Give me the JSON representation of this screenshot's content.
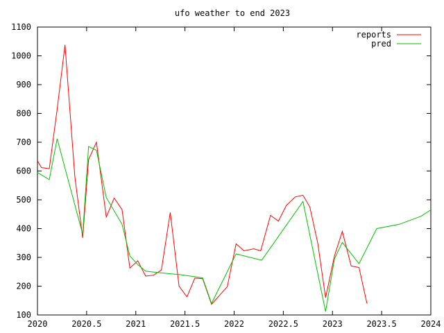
{
  "chart_data": {
    "type": "line",
    "title": "ufo weather to end 2023",
    "xlabel": "",
    "ylabel": "",
    "xlim": [
      2020,
      2024
    ],
    "ylim": [
      100,
      1100
    ],
    "x_ticks": [
      2020,
      2020.5,
      2021,
      2021.5,
      2022,
      2022.5,
      2023,
      2023.5,
      2024
    ],
    "x_tick_labels": [
      "2020",
      "2020.5",
      "2021",
      "2021.5",
      "2022",
      "2022.5",
      "2023",
      "2023.5",
      "2024"
    ],
    "y_ticks": [
      100,
      200,
      300,
      400,
      500,
      600,
      700,
      800,
      900,
      1000,
      1100
    ],
    "y_tick_labels": [
      "100",
      "200",
      "300",
      "400",
      "500",
      "600",
      "700",
      "800",
      "900",
      "1000",
      "1100"
    ],
    "grid": false,
    "legend": "top-right",
    "series": [
      {
        "name": "reports",
        "color": "#ff0000",
        "points": [
          [
            2020.0,
            635
          ],
          [
            2020.04,
            612
          ],
          [
            2020.12,
            608
          ],
          [
            2020.2,
            815
          ],
          [
            2020.28,
            1038
          ],
          [
            2020.38,
            580
          ],
          [
            2020.46,
            368
          ],
          [
            2020.52,
            640
          ],
          [
            2020.6,
            700
          ],
          [
            2020.7,
            440
          ],
          [
            2020.78,
            506
          ],
          [
            2020.86,
            466
          ],
          [
            2020.94,
            263
          ],
          [
            2021.02,
            288
          ],
          [
            2021.1,
            235
          ],
          [
            2021.18,
            238
          ],
          [
            2021.26,
            256
          ],
          [
            2021.35,
            456
          ],
          [
            2021.44,
            200
          ],
          [
            2021.52,
            163
          ],
          [
            2021.6,
            228
          ],
          [
            2021.68,
            226
          ],
          [
            2021.77,
            137
          ],
          [
            2021.93,
            198
          ],
          [
            2022.02,
            347
          ],
          [
            2022.1,
            323
          ],
          [
            2022.2,
            330
          ],
          [
            2022.27,
            323
          ],
          [
            2022.37,
            446
          ],
          [
            2022.45,
            426
          ],
          [
            2022.53,
            480
          ],
          [
            2022.62,
            510
          ],
          [
            2022.7,
            516
          ],
          [
            2022.77,
            475
          ],
          [
            2022.85,
            350
          ],
          [
            2022.93,
            160
          ],
          [
            2023.02,
            305
          ],
          [
            2023.1,
            390
          ],
          [
            2023.19,
            270
          ],
          [
            2023.27,
            265
          ],
          [
            2023.35,
            140
          ]
        ]
      },
      {
        "name": "pred",
        "color": "#00c000",
        "points": [
          [
            2020.0,
            595
          ],
          [
            2020.12,
            570
          ],
          [
            2020.2,
            712
          ],
          [
            2020.46,
            380
          ],
          [
            2020.52,
            685
          ],
          [
            2020.6,
            672
          ],
          [
            2020.7,
            508
          ],
          [
            2020.86,
            415
          ],
          [
            2020.94,
            305
          ],
          [
            2021.02,
            275
          ],
          [
            2021.1,
            252
          ],
          [
            2021.26,
            246
          ],
          [
            2021.45,
            240
          ],
          [
            2021.68,
            229
          ],
          [
            2021.77,
            140
          ],
          [
            2022.02,
            312
          ],
          [
            2022.28,
            290
          ],
          [
            2022.7,
            494
          ],
          [
            2022.93,
            112
          ],
          [
            2023.02,
            295
          ],
          [
            2023.1,
            352
          ],
          [
            2023.27,
            278
          ],
          [
            2023.45,
            400
          ],
          [
            2023.68,
            415
          ],
          [
            2023.9,
            443
          ],
          [
            2024.0,
            465
          ]
        ]
      }
    ]
  }
}
